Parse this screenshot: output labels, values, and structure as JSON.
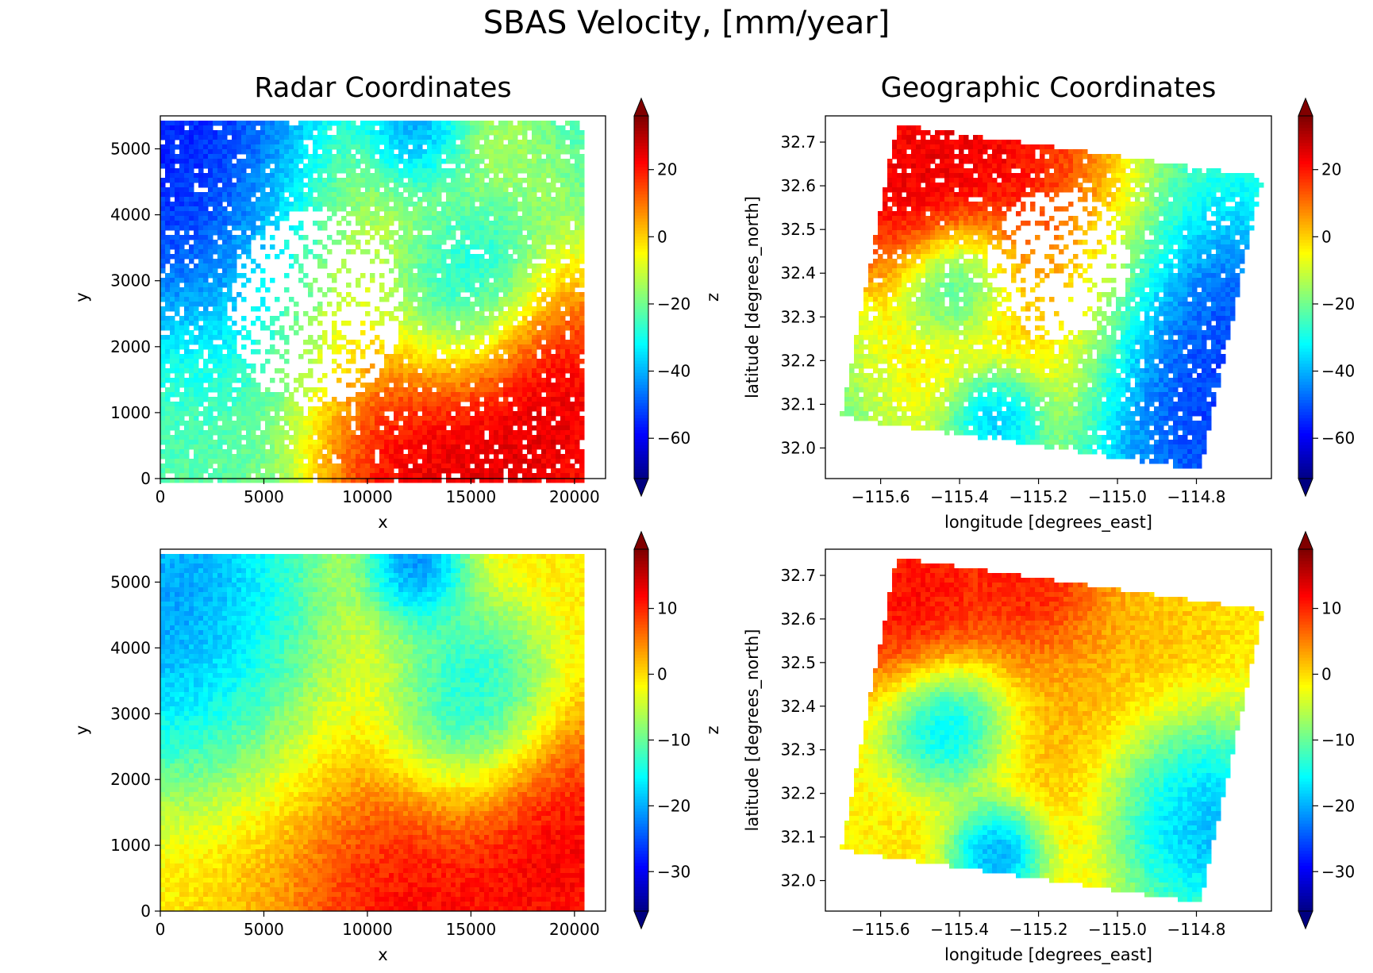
{
  "suptitle": "SBAS Velocity, [mm/year]",
  "chart_data": [
    {
      "type": "heatmap",
      "panel": "top-left",
      "title": "Radar Coordinates",
      "xlabel": "x",
      "ylabel": "y",
      "colorbar_label": "z",
      "xlim": [
        0,
        21500
      ],
      "ylim": [
        0,
        5500
      ],
      "data_extent_x": [
        0,
        20450
      ],
      "data_extent_y": [
        0,
        5450
      ],
      "xticks": [
        0,
        5000,
        10000,
        15000,
        20000
      ],
      "xtick_labels": [
        "0",
        "5000",
        "10000",
        "15000",
        "20000"
      ],
      "yticks": [
        0,
        1000,
        2000,
        3000,
        4000,
        5000
      ],
      "ytick_labels": [
        "0",
        "1000",
        "2000",
        "3000",
        "4000",
        "5000"
      ],
      "colormap": "jet",
      "clim": [
        -72,
        36
      ],
      "cticks": [
        -60,
        -40,
        -20,
        0,
        20
      ],
      "ctick_labels": [
        "−60",
        "−40",
        "−20",
        "0",
        "20"
      ],
      "colorbar_extend": "both",
      "masked": true,
      "field": [
        {
          "x": 3000,
          "y": 4600,
          "v": -62,
          "r": 4500
        },
        {
          "x": 14200,
          "y": 2900,
          "v": -55,
          "r": 2200
        },
        {
          "x": 12100,
          "y": 5200,
          "v": -60,
          "r": 1400
        },
        {
          "x": 12500,
          "y": 400,
          "v": 34,
          "r": 3200
        },
        {
          "x": 18400,
          "y": 900,
          "v": 33,
          "r": 3000
        },
        {
          "x": 10500,
          "y": 3500,
          "v": 6,
          "r": 4000
        },
        {
          "x": 1200,
          "y": 300,
          "v": -20,
          "r": 3800
        }
      ],
      "base_value": -28
    },
    {
      "type": "heatmap",
      "panel": "top-right",
      "title": "Geographic Coordinates",
      "xlabel": "longitude [degrees_east]",
      "ylabel": "latitude [degrees_north]",
      "xlim": [
        -115.74,
        -114.61
      ],
      "ylim": [
        31.93,
        32.76
      ],
      "xticks": [
        -115.6,
        -115.4,
        -115.2,
        -115.0,
        -114.8
      ],
      "xtick_labels": [
        "−115.6",
        "−115.4",
        "−115.2",
        "−115.0",
        "−114.8"
      ],
      "yticks": [
        32.0,
        32.1,
        32.2,
        32.3,
        32.4,
        32.5,
        32.6,
        32.7
      ],
      "ytick_labels": [
        "32.0",
        "32.1",
        "32.2",
        "32.3",
        "32.4",
        "32.5",
        "32.6",
        "32.7"
      ],
      "colormap": "jet",
      "clim": [
        -72,
        36
      ],
      "cticks": [
        -60,
        -40,
        -20,
        0,
        20
      ],
      "ctick_labels": [
        "−60",
        "−40",
        "−20",
        "0",
        "20"
      ],
      "colorbar_extend": "both",
      "masked": true,
      "footprint": [
        [
          -115.56,
          32.74
        ],
        [
          -114.63,
          32.62
        ],
        [
          -114.79,
          31.95
        ],
        [
          -115.7,
          32.07
        ]
      ],
      "field": [
        {
          "x": -115.33,
          "y": 32.65,
          "v": 33,
          "r": 0.16
        },
        {
          "x": -115.55,
          "y": 32.6,
          "v": 30,
          "r": 0.12
        },
        {
          "x": -115.4,
          "y": 32.38,
          "v": -52,
          "r": 0.08
        },
        {
          "x": -115.3,
          "y": 32.08,
          "v": -58,
          "r": 0.07
        },
        {
          "x": -114.8,
          "y": 32.15,
          "v": -58,
          "r": 0.18
        },
        {
          "x": -115.25,
          "y": 32.3,
          "v": 8,
          "r": 0.2
        }
      ],
      "base_value": -26
    },
    {
      "type": "heatmap",
      "panel": "bottom-left",
      "title": "",
      "xlabel": "x",
      "ylabel": "y",
      "colorbar_label": "z",
      "xlim": [
        0,
        21500
      ],
      "ylim": [
        0,
        5500
      ],
      "data_extent_x": [
        0,
        20450
      ],
      "data_extent_y": [
        0,
        5450
      ],
      "xticks": [
        0,
        5000,
        10000,
        15000,
        20000
      ],
      "xtick_labels": [
        "0",
        "5000",
        "10000",
        "15000",
        "20000"
      ],
      "yticks": [
        0,
        1000,
        2000,
        3000,
        4000,
        5000
      ],
      "ytick_labels": [
        "0",
        "1000",
        "2000",
        "3000",
        "4000",
        "5000"
      ],
      "colormap": "jet",
      "clim": [
        -36,
        19
      ],
      "cticks": [
        -30,
        -20,
        -10,
        0,
        10
      ],
      "ctick_labels": [
        "−30",
        "−20",
        "−10",
        "0",
        "10"
      ],
      "colorbar_extend": "both",
      "masked": false,
      "field": [
        {
          "x": 2500,
          "y": 4300,
          "v": -30,
          "r": 3000
        },
        {
          "x": 14500,
          "y": 3000,
          "v": -30,
          "r": 2400
        },
        {
          "x": 12200,
          "y": 5200,
          "v": -32,
          "r": 1400
        },
        {
          "x": 12200,
          "y": 350,
          "v": 18,
          "r": 2800
        },
        {
          "x": 18300,
          "y": 1000,
          "v": 17,
          "r": 2700
        },
        {
          "x": 11000,
          "y": 2000,
          "v": 6,
          "r": 5500
        },
        {
          "x": 5000,
          "y": 3800,
          "v": -12,
          "r": 3500
        }
      ],
      "base_value": -4
    },
    {
      "type": "heatmap",
      "panel": "bottom-right",
      "title": "",
      "xlabel": "longitude [degrees_east]",
      "ylabel": "latitude [degrees_north]",
      "xlim": [
        -115.74,
        -114.61
      ],
      "ylim": [
        31.93,
        32.76
      ],
      "xticks": [
        -115.6,
        -115.4,
        -115.2,
        -115.0,
        -114.8
      ],
      "xtick_labels": [
        "−115.6",
        "−115.4",
        "−115.2",
        "−115.0",
        "−114.8"
      ],
      "yticks": [
        32.0,
        32.1,
        32.2,
        32.3,
        32.4,
        32.5,
        32.6,
        32.7
      ],
      "ytick_labels": [
        "32.0",
        "32.1",
        "32.2",
        "32.3",
        "32.4",
        "32.5",
        "32.6",
        "32.7"
      ],
      "colormap": "jet",
      "clim": [
        -36,
        19
      ],
      "cticks": [
        -30,
        -20,
        -10,
        0,
        10
      ],
      "ctick_labels": [
        "−30",
        "−20",
        "−10",
        "0",
        "10"
      ],
      "colorbar_extend": "both",
      "masked": false,
      "footprint": [
        [
          -115.56,
          32.74
        ],
        [
          -114.63,
          32.62
        ],
        [
          -114.79,
          31.95
        ],
        [
          -115.7,
          32.07
        ]
      ],
      "field": [
        {
          "x": -115.5,
          "y": 32.63,
          "v": 17,
          "r": 0.12
        },
        {
          "x": -115.22,
          "y": 32.68,
          "v": 17,
          "r": 0.1
        },
        {
          "x": -115.42,
          "y": 32.36,
          "v": -30,
          "r": 0.09
        },
        {
          "x": -115.3,
          "y": 32.07,
          "v": -32,
          "r": 0.07
        },
        {
          "x": -114.82,
          "y": 32.16,
          "v": -28,
          "r": 0.13
        },
        {
          "x": -115.15,
          "y": 32.4,
          "v": 4,
          "r": 0.3
        }
      ],
      "base_value": -6
    }
  ]
}
